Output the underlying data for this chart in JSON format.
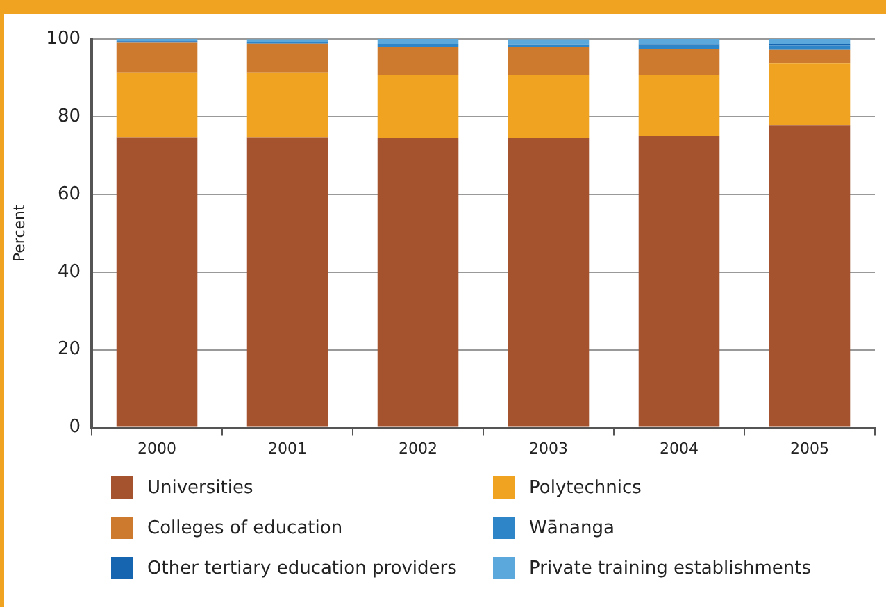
{
  "chart_data": {
    "type": "bar",
    "stacked": true,
    "ylabel": "Percent",
    "categories": [
      "2000",
      "2001",
      "2002",
      "2003",
      "2004",
      "2005"
    ],
    "series": [
      {
        "name": "Universities",
        "color": "#a5522f",
        "values": [
          74.7,
          74.7,
          74.6,
          74.6,
          75.0,
          77.8
        ]
      },
      {
        "name": "Polytechnics",
        "color": "#f0a321",
        "values": [
          16.6,
          16.6,
          16.1,
          16.1,
          15.7,
          15.9
        ]
      },
      {
        "name": "Colleges of education",
        "color": "#cd7a2e",
        "values": [
          7.7,
          7.5,
          7.2,
          7.2,
          6.7,
          3.5
        ]
      },
      {
        "name": "Wānanga",
        "color": "#2e86c8",
        "values": [
          0.3,
          0.4,
          0.7,
          0.6,
          1.0,
          1.1
        ]
      },
      {
        "name": "Other tertiary education providers",
        "color": "#1565b0",
        "values": [
          0.1,
          null,
          0.1,
          null,
          0.1,
          0.3
        ]
      },
      {
        "name": "Private training establishments",
        "color": "#5ba9dc",
        "values": [
          0.6,
          0.7,
          1.3,
          1.4,
          1.5,
          1.4
        ]
      }
    ],
    "ylim": [
      0,
      100
    ],
    "yticks": [
      0,
      20,
      40,
      60,
      80,
      100
    ],
    "grid": "y",
    "legend": "bottom"
  }
}
